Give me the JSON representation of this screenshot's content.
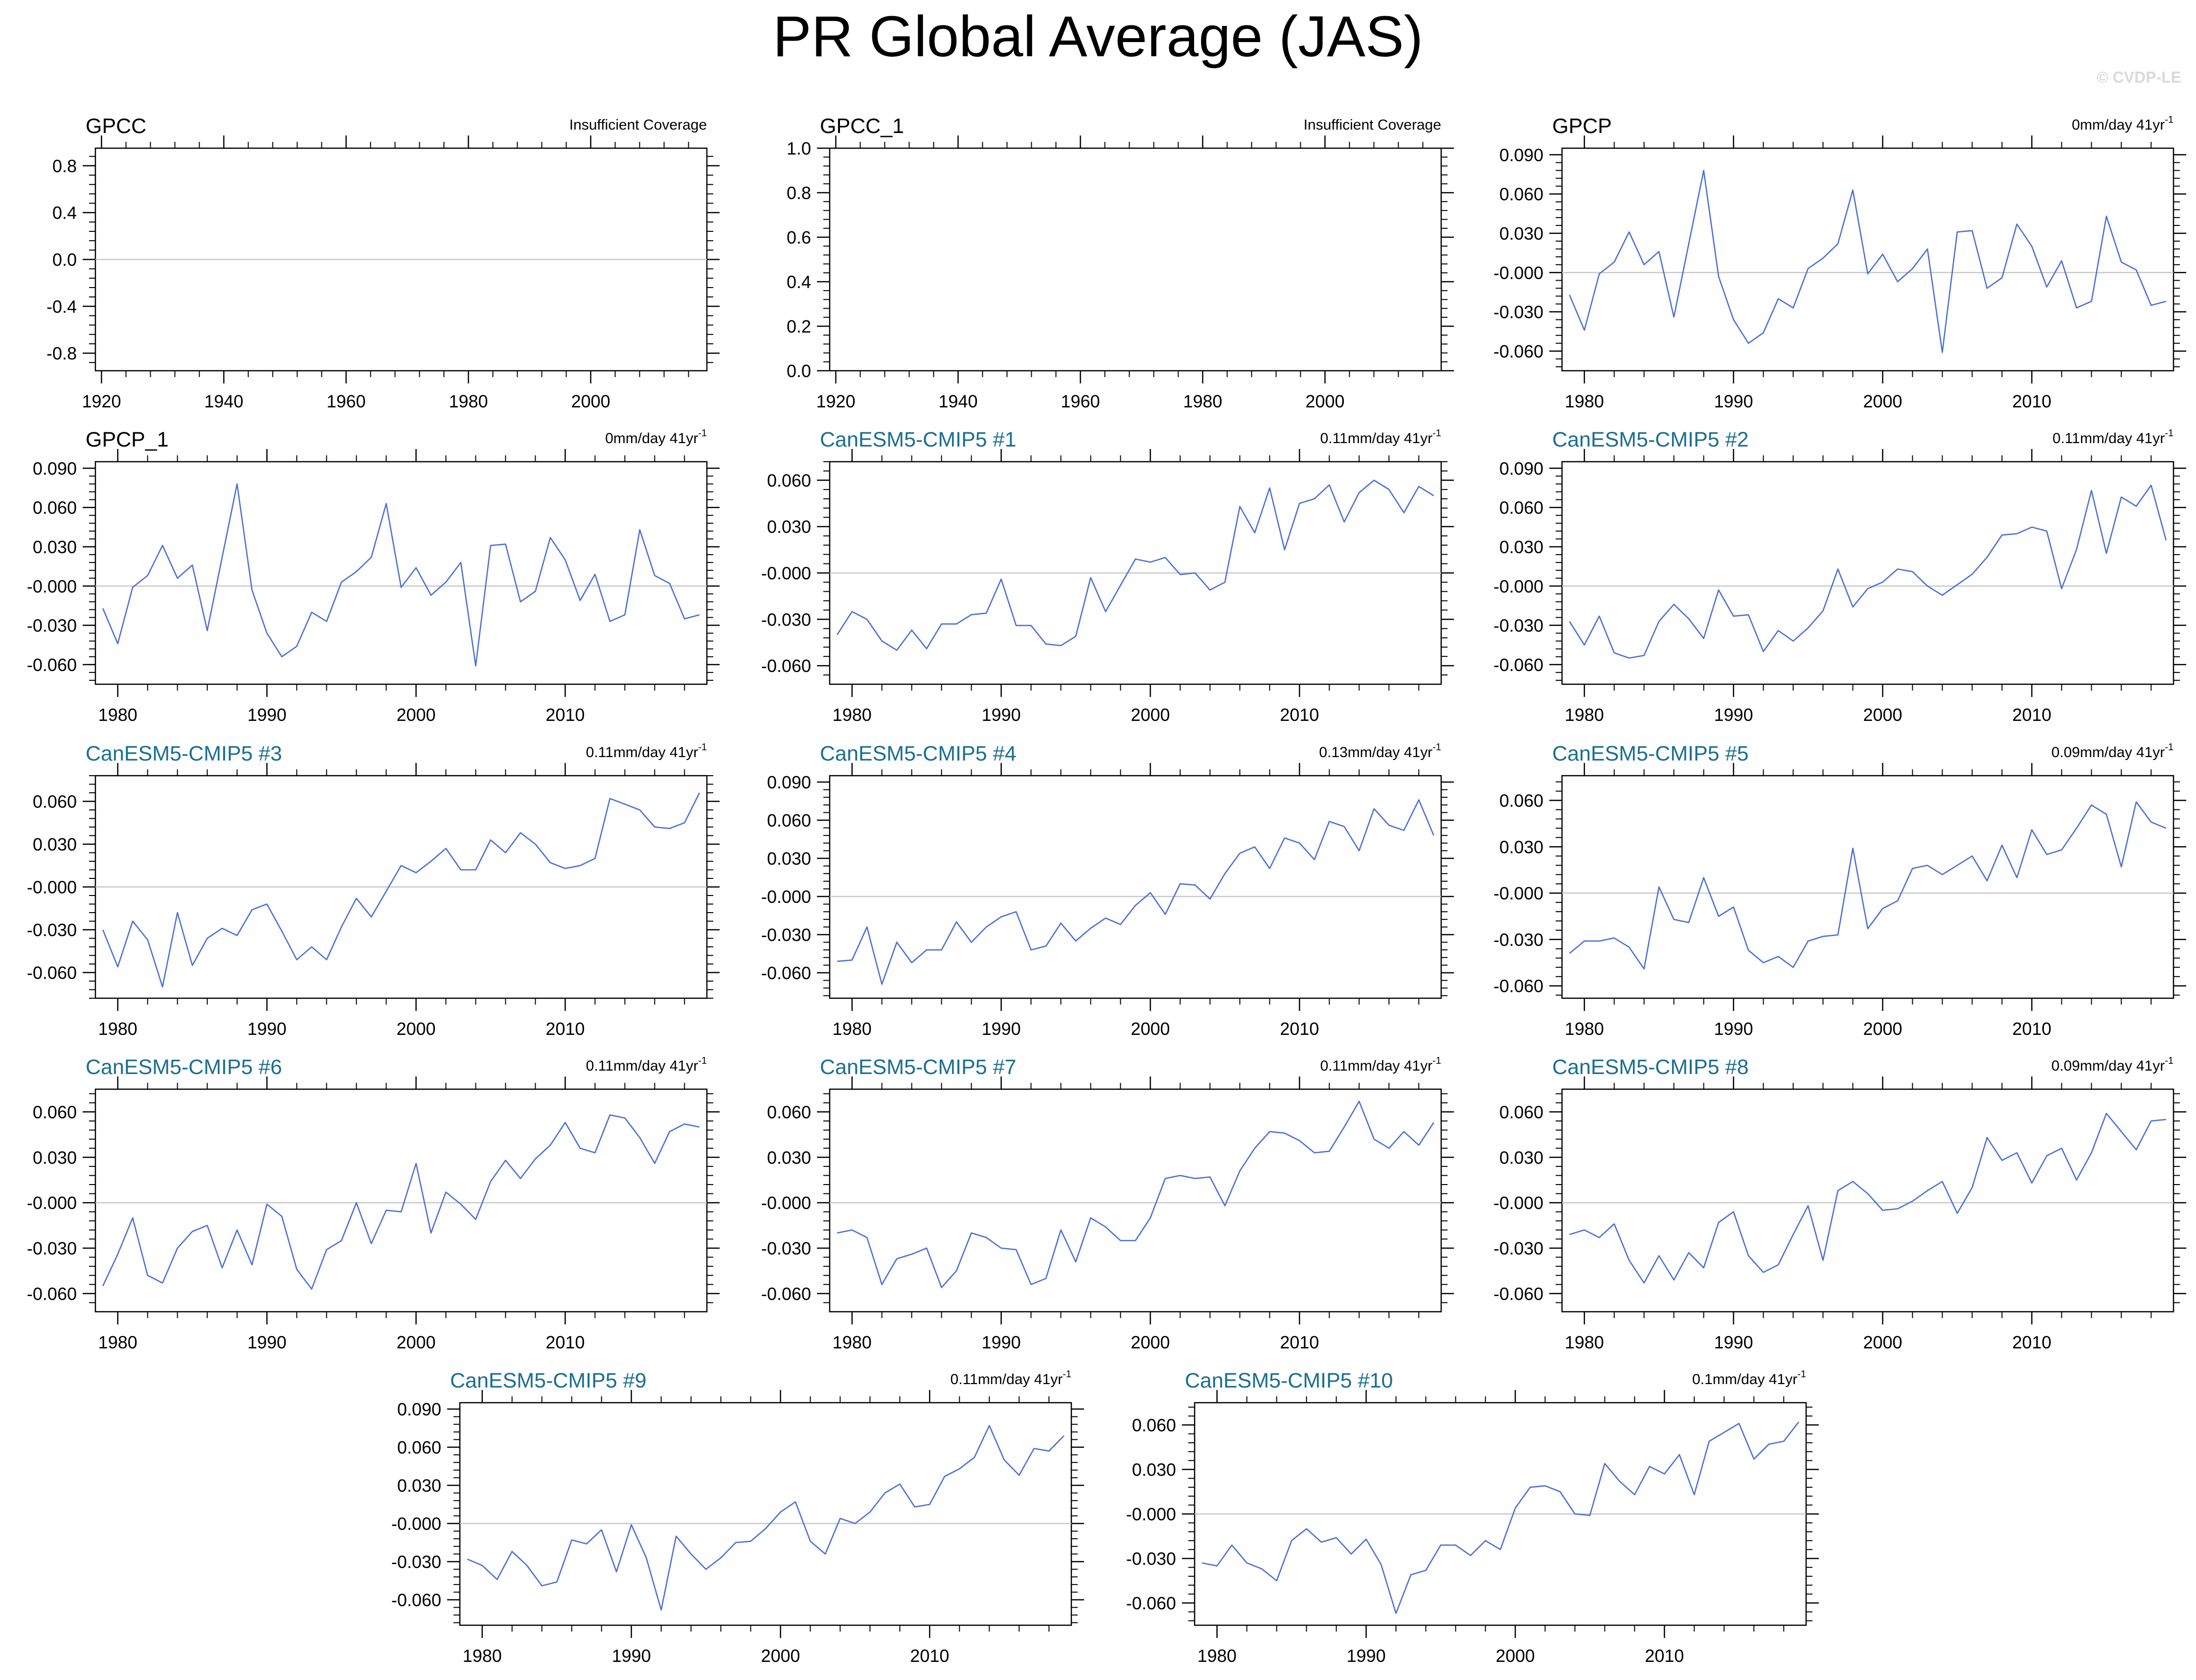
{
  "page": {
    "title": "PR Global Average (JAS)",
    "copyright": "© CVDP-LE"
  },
  "colors": {
    "line": "#4a6fd6",
    "zero_line": "#c8c8c8",
    "axis": "#000000",
    "member_title": "#1a6e90",
    "obs_title": "#000000"
  },
  "chart_data": [
    {
      "type": "line",
      "title": "GPCC",
      "title_style": "obs",
      "trend_label": "Insufficient Coverage",
      "trend_sup": "",
      "xlim": [
        1919,
        2019
      ],
      "ylim": [
        -0.95,
        0.95
      ],
      "xticks": [
        1920,
        1940,
        1960,
        1980,
        2000
      ],
      "yticks": [
        0.8,
        0.4,
        0.0,
        -0.4,
        -0.8
      ],
      "ytick_labels": [
        "0.8",
        "0.4",
        "0.0",
        "-0.4",
        "-0.8"
      ],
      "zero_line": true,
      "series": []
    },
    {
      "type": "line",
      "title": "GPCC_1",
      "title_style": "obs",
      "trend_label": "Insufficient Coverage",
      "trend_sup": "",
      "xlim": [
        1919,
        2019
      ],
      "ylim": [
        0.0,
        1.0
      ],
      "xticks": [
        1920,
        1940,
        1960,
        1980,
        2000
      ],
      "yticks": [
        1.0,
        0.8,
        0.6,
        0.4,
        0.2,
        0.0
      ],
      "ytick_labels": [
        "1.0",
        "0.8",
        "0.6",
        "0.4",
        "0.2",
        "0.0"
      ],
      "zero_line": false,
      "series": []
    },
    {
      "type": "line",
      "title": "GPCP",
      "title_style": "obs",
      "trend_label": "0mm/day 41yr",
      "trend_sup": "-1",
      "xlim": [
        1978.5,
        2019.5
      ],
      "ylim": [
        -0.075,
        0.095
      ],
      "xticks": [
        1980,
        1990,
        2000,
        2010
      ],
      "yticks": [
        0.09,
        0.06,
        0.03,
        0.0,
        -0.03,
        -0.06
      ],
      "ytick_labels": [
        "0.090",
        "0.060",
        "0.030",
        "-0.000",
        "-0.030",
        "-0.060"
      ],
      "zero_line": true,
      "x_start": 1979,
      "values": [
        -0.017,
        -0.044,
        -0.001,
        0.008,
        0.031,
        0.006,
        0.016,
        -0.034,
        0.022,
        0.078,
        -0.003,
        -0.036,
        -0.054,
        -0.046,
        -0.02,
        -0.027,
        0.003,
        0.011,
        0.022,
        0.063,
        -0.001,
        0.014,
        -0.007,
        0.003,
        0.018,
        -0.061,
        0.031,
        0.032,
        -0.012,
        -0.004,
        0.037,
        0.02,
        -0.011,
        0.009,
        -0.027,
        -0.022,
        0.043,
        0.008,
        0.002,
        -0.025,
        -0.022
      ]
    },
    {
      "type": "line",
      "title": "GPCP_1",
      "title_style": "obs",
      "trend_label": "0mm/day 41yr",
      "trend_sup": "-1",
      "xlim": [
        1978.5,
        2019.5
      ],
      "ylim": [
        -0.075,
        0.095
      ],
      "xticks": [
        1980,
        1990,
        2000,
        2010
      ],
      "yticks": [
        0.09,
        0.06,
        0.03,
        0.0,
        -0.03,
        -0.06
      ],
      "ytick_labels": [
        "0.090",
        "0.060",
        "0.030",
        "-0.000",
        "-0.030",
        "-0.060"
      ],
      "zero_line": true,
      "x_start": 1979,
      "values": [
        -0.017,
        -0.044,
        -0.001,
        0.008,
        0.031,
        0.006,
        0.016,
        -0.034,
        0.022,
        0.078,
        -0.003,
        -0.036,
        -0.054,
        -0.046,
        -0.02,
        -0.027,
        0.003,
        0.011,
        0.022,
        0.063,
        -0.001,
        0.014,
        -0.007,
        0.003,
        0.018,
        -0.061,
        0.031,
        0.032,
        -0.012,
        -0.004,
        0.037,
        0.02,
        -0.011,
        0.009,
        -0.027,
        -0.022,
        0.043,
        0.008,
        0.002,
        -0.025,
        -0.022
      ]
    },
    {
      "type": "line",
      "title": "CanESM5-CMIP5 #1",
      "title_style": "member",
      "trend_label": "0.11mm/day 41yr",
      "trend_sup": "-1",
      "xlim": [
        1978.5,
        2019.5
      ],
      "ylim": [
        -0.072,
        0.072
      ],
      "xticks": [
        1980,
        1990,
        2000,
        2010
      ],
      "yticks": [
        0.06,
        0.03,
        0.0,
        -0.03,
        -0.06
      ],
      "ytick_labels": [
        "0.060",
        "0.030",
        "-0.000",
        "-0.030",
        "-0.060"
      ],
      "zero_line": true,
      "x_start": 1979,
      "values": [
        -0.04,
        -0.025,
        -0.03,
        -0.044,
        -0.05,
        -0.037,
        -0.049,
        -0.033,
        -0.033,
        -0.027,
        -0.026,
        -0.004,
        -0.034,
        -0.034,
        -0.046,
        -0.047,
        -0.041,
        -0.003,
        -0.025,
        -0.008,
        0.009,
        0.007,
        0.01,
        -0.001,
        0.0,
        -0.011,
        -0.006,
        0.043,
        0.026,
        0.055,
        0.015,
        0.045,
        0.048,
        0.057,
        0.033,
        0.052,
        0.06,
        0.054,
        0.039,
        0.056,
        0.05
      ]
    },
    {
      "type": "line",
      "title": "CanESM5-CMIP5 #2",
      "title_style": "member",
      "trend_label": "0.11mm/day 41yr",
      "trend_sup": "-1",
      "xlim": [
        1978.5,
        2019.5
      ],
      "ylim": [
        -0.075,
        0.095
      ],
      "xticks": [
        1980,
        1990,
        2000,
        2010
      ],
      "yticks": [
        0.09,
        0.06,
        0.03,
        0.0,
        -0.03,
        -0.06
      ],
      "ytick_labels": [
        "0.090",
        "0.060",
        "0.030",
        "-0.000",
        "-0.030",
        "-0.060"
      ],
      "zero_line": true,
      "x_start": 1979,
      "values": [
        -0.027,
        -0.045,
        -0.023,
        -0.051,
        -0.055,
        -0.053,
        -0.027,
        -0.014,
        -0.025,
        -0.04,
        -0.003,
        -0.023,
        -0.022,
        -0.05,
        -0.034,
        -0.042,
        -0.032,
        -0.019,
        0.013,
        -0.016,
        -0.002,
        0.003,
        0.013,
        0.011,
        0.0,
        -0.007,
        0.001,
        0.009,
        0.022,
        0.039,
        0.04,
        0.045,
        0.042,
        -0.002,
        0.028,
        0.073,
        0.025,
        0.068,
        0.061,
        0.077,
        0.035
      ]
    },
    {
      "type": "line",
      "title": "CanESM5-CMIP5 #3",
      "title_style": "member",
      "trend_label": "0.11mm/day 41yr",
      "trend_sup": "-1",
      "xlim": [
        1978.5,
        2019.5
      ],
      "ylim": [
        -0.078,
        0.078
      ],
      "xticks": [
        1980,
        1990,
        2000,
        2010
      ],
      "yticks": [
        0.06,
        0.03,
        0.0,
        -0.03,
        -0.06
      ],
      "ytick_labels": [
        "0.060",
        "0.030",
        "-0.000",
        "-0.030",
        "-0.060"
      ],
      "zero_line": true,
      "x_start": 1979,
      "values": [
        -0.03,
        -0.056,
        -0.024,
        -0.037,
        -0.07,
        -0.018,
        -0.055,
        -0.036,
        -0.029,
        -0.034,
        -0.016,
        -0.012,
        -0.031,
        -0.051,
        -0.042,
        -0.051,
        -0.028,
        -0.008,
        -0.021,
        -0.003,
        0.015,
        0.01,
        0.018,
        0.027,
        0.012,
        0.012,
        0.033,
        0.024,
        0.038,
        0.03,
        0.017,
        0.013,
        0.015,
        0.02,
        0.062,
        0.058,
        0.054,
        0.042,
        0.041,
        0.045,
        0.066
      ]
    },
    {
      "type": "line",
      "title": "CanESM5-CMIP5 #4",
      "title_style": "member",
      "trend_label": "0.13mm/day 41yr",
      "trend_sup": "-1",
      "xlim": [
        1978.5,
        2019.5
      ],
      "ylim": [
        -0.08,
        0.095
      ],
      "xticks": [
        1980,
        1990,
        2000,
        2010
      ],
      "yticks": [
        0.09,
        0.06,
        0.03,
        0.0,
        -0.03,
        -0.06
      ],
      "ytick_labels": [
        "0.090",
        "0.060",
        "0.030",
        "-0.000",
        "-0.030",
        "-0.060"
      ],
      "zero_line": true,
      "x_start": 1979,
      "values": [
        -0.051,
        -0.05,
        -0.024,
        -0.069,
        -0.036,
        -0.052,
        -0.042,
        -0.042,
        -0.02,
        -0.036,
        -0.024,
        -0.016,
        -0.012,
        -0.042,
        -0.039,
        -0.021,
        -0.035,
        -0.025,
        -0.017,
        -0.022,
        -0.007,
        0.003,
        -0.014,
        0.01,
        0.009,
        -0.002,
        0.018,
        0.034,
        0.039,
        0.022,
        0.046,
        0.042,
        0.029,
        0.059,
        0.055,
        0.036,
        0.069,
        0.056,
        0.052,
        0.076,
        0.048
      ]
    },
    {
      "type": "line",
      "title": "CanESM5-CMIP5 #5",
      "title_style": "member",
      "trend_label": "0.09mm/day 41yr",
      "trend_sup": "-1",
      "xlim": [
        1978.5,
        2019.5
      ],
      "ylim": [
        -0.068,
        0.076
      ],
      "xticks": [
        1980,
        1990,
        2000,
        2010
      ],
      "yticks": [
        0.06,
        0.03,
        0.0,
        -0.03,
        -0.06
      ],
      "ytick_labels": [
        "0.060",
        "0.030",
        "-0.000",
        "-0.030",
        "-0.060"
      ],
      "zero_line": true,
      "x_start": 1979,
      "values": [
        -0.039,
        -0.031,
        -0.031,
        -0.029,
        -0.035,
        -0.049,
        0.004,
        -0.017,
        -0.019,
        0.01,
        -0.015,
        -0.009,
        -0.037,
        -0.045,
        -0.041,
        -0.048,
        -0.031,
        -0.028,
        -0.027,
        0.029,
        -0.023,
        -0.01,
        -0.005,
        0.016,
        0.018,
        0.012,
        0.018,
        0.024,
        0.008,
        0.031,
        0.01,
        0.041,
        0.025,
        0.028,
        0.042,
        0.057,
        0.051,
        0.017,
        0.059,
        0.046,
        0.042
      ]
    },
    {
      "type": "line",
      "title": "CanESM5-CMIP5 #6",
      "title_style": "member",
      "trend_label": "0.11mm/day 41yr",
      "trend_sup": "-1",
      "xlim": [
        1978.5,
        2019.5
      ],
      "ylim": [
        -0.072,
        0.075
      ],
      "xticks": [
        1980,
        1990,
        2000,
        2010
      ],
      "yticks": [
        0.06,
        0.03,
        0.0,
        -0.03,
        -0.06
      ],
      "ytick_labels": [
        "0.060",
        "0.030",
        "-0.000",
        "-0.030",
        "-0.060"
      ],
      "zero_line": true,
      "x_start": 1979,
      "values": [
        -0.055,
        -0.034,
        -0.01,
        -0.048,
        -0.053,
        -0.03,
        -0.019,
        -0.015,
        -0.043,
        -0.018,
        -0.041,
        -0.001,
        -0.009,
        -0.044,
        -0.057,
        -0.031,
        -0.025,
        0.0,
        -0.027,
        -0.005,
        -0.006,
        0.026,
        -0.02,
        0.007,
        -0.001,
        -0.011,
        0.014,
        0.028,
        0.016,
        0.029,
        0.038,
        0.053,
        0.036,
        0.033,
        0.058,
        0.056,
        0.043,
        0.026,
        0.047,
        0.052,
        0.05
      ]
    },
    {
      "type": "line",
      "title": "CanESM5-CMIP5 #7",
      "title_style": "member",
      "trend_label": "0.11mm/day 41yr",
      "trend_sup": "-1",
      "xlim": [
        1978.5,
        2019.5
      ],
      "ylim": [
        -0.072,
        0.075
      ],
      "xticks": [
        1980,
        1990,
        2000,
        2010
      ],
      "yticks": [
        0.06,
        0.03,
        0.0,
        -0.03,
        -0.06
      ],
      "ytick_labels": [
        "0.060",
        "0.030",
        "-0.000",
        "-0.030",
        "-0.060"
      ],
      "zero_line": true,
      "x_start": 1979,
      "values": [
        -0.02,
        -0.018,
        -0.023,
        -0.054,
        -0.037,
        -0.034,
        -0.03,
        -0.056,
        -0.045,
        -0.02,
        -0.023,
        -0.03,
        -0.031,
        -0.054,
        -0.05,
        -0.018,
        -0.039,
        -0.01,
        -0.016,
        -0.025,
        -0.025,
        -0.01,
        0.016,
        0.018,
        0.016,
        0.017,
        -0.002,
        0.021,
        0.036,
        0.047,
        0.046,
        0.041,
        0.033,
        0.034,
        0.05,
        0.067,
        0.042,
        0.036,
        0.047,
        0.038,
        0.053
      ]
    },
    {
      "type": "line",
      "title": "CanESM5-CMIP5 #8",
      "title_style": "member",
      "trend_label": "0.09mm/day 41yr",
      "trend_sup": "-1",
      "xlim": [
        1978.5,
        2019.5
      ],
      "ylim": [
        -0.072,
        0.075
      ],
      "xticks": [
        1980,
        1990,
        2000,
        2010
      ],
      "yticks": [
        0.06,
        0.03,
        0.0,
        -0.03,
        -0.06
      ],
      "ytick_labels": [
        "0.060",
        "0.030",
        "-0.000",
        "-0.030",
        "-0.060"
      ],
      "zero_line": true,
      "x_start": 1979,
      "values": [
        -0.021,
        -0.018,
        -0.023,
        -0.014,
        -0.038,
        -0.053,
        -0.035,
        -0.051,
        -0.033,
        -0.043,
        -0.013,
        -0.006,
        -0.035,
        -0.046,
        -0.041,
        -0.021,
        -0.002,
        -0.038,
        0.008,
        0.014,
        0.006,
        -0.005,
        -0.004,
        0.001,
        0.008,
        0.014,
        -0.007,
        0.01,
        0.043,
        0.028,
        0.033,
        0.013,
        0.031,
        0.036,
        0.015,
        0.033,
        0.059,
        0.047,
        0.035,
        0.054,
        0.055
      ]
    },
    {
      "type": "line",
      "title": "CanESM5-CMIP5 #9",
      "title_style": "member",
      "trend_label": "0.11mm/day 41yr",
      "trend_sup": "-1",
      "xlim": [
        1978.5,
        2019.5
      ],
      "ylim": [
        -0.08,
        0.095
      ],
      "xticks": [
        1980,
        1990,
        2000,
        2010
      ],
      "yticks": [
        0.09,
        0.06,
        0.03,
        0.0,
        -0.03,
        -0.06
      ],
      "ytick_labels": [
        "0.090",
        "0.060",
        "0.030",
        "-0.000",
        "-0.030",
        "-0.060"
      ],
      "zero_line": true,
      "x_start": 1979,
      "values": [
        -0.028,
        -0.033,
        -0.044,
        -0.022,
        -0.033,
        -0.049,
        -0.046,
        -0.013,
        -0.016,
        -0.005,
        -0.038,
        -0.001,
        -0.027,
        -0.068,
        -0.01,
        -0.024,
        -0.036,
        -0.027,
        -0.015,
        -0.014,
        -0.004,
        0.009,
        0.017,
        -0.014,
        -0.024,
        0.004,
        0.0,
        0.009,
        0.024,
        0.031,
        0.013,
        0.015,
        0.037,
        0.043,
        0.052,
        0.077,
        0.05,
        0.038,
        0.059,
        0.057,
        0.069
      ]
    },
    {
      "type": "line",
      "title": "CanESM5-CMIP5 #10",
      "title_style": "member",
      "trend_label": "0.1mm/day 41yr",
      "trend_sup": "-1",
      "xlim": [
        1978.5,
        2019.5
      ],
      "ylim": [
        -0.075,
        0.075
      ],
      "xticks": [
        1980,
        1990,
        2000,
        2010
      ],
      "yticks": [
        0.06,
        0.03,
        0.0,
        -0.03,
        -0.06
      ],
      "ytick_labels": [
        "0.060",
        "0.030",
        "-0.000",
        "-0.030",
        "-0.060"
      ],
      "zero_line": true,
      "x_start": 1979,
      "values": [
        -0.033,
        -0.035,
        -0.021,
        -0.033,
        -0.037,
        -0.045,
        -0.018,
        -0.01,
        -0.019,
        -0.016,
        -0.027,
        -0.017,
        -0.034,
        -0.067,
        -0.041,
        -0.038,
        -0.021,
        -0.021,
        -0.028,
        -0.018,
        -0.024,
        0.004,
        0.018,
        0.019,
        0.015,
        0.0,
        -0.001,
        0.034,
        0.022,
        0.013,
        0.032,
        0.027,
        0.04,
        0.013,
        0.049,
        0.055,
        0.061,
        0.037,
        0.047,
        0.049,
        0.062
      ]
    }
  ]
}
